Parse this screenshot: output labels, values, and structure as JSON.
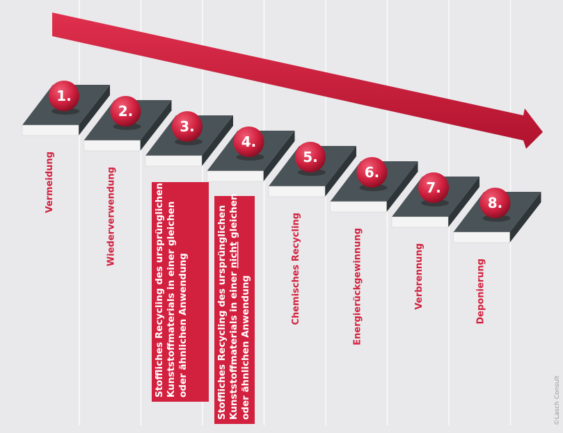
{
  "steps": [
    {
      "number": "1.",
      "label": "Vermeidung"
    },
    {
      "number": "2.",
      "label": "Wiederverwendung"
    },
    {
      "number": "3.",
      "lines": [
        [
          {
            "text": "Stoffliches Recycling des ursprünglichen"
          }
        ],
        [
          {
            "text": "Kunststoffmaterials in einer gleichen"
          }
        ],
        [
          {
            "text": "oder ähnlichen Anwendung"
          }
        ]
      ]
    },
    {
      "number": "4.",
      "lines": [
        [
          {
            "text": "Stoffliches Recycling des ursprünglichen"
          }
        ],
        [
          {
            "text": "Kunststoffmaterials in einer "
          },
          {
            "text": "nicht",
            "underline": true
          },
          {
            "text": " gleichen"
          }
        ],
        [
          {
            "text": "oder ähnlichen Anwendung"
          }
        ]
      ]
    },
    {
      "number": "5.",
      "label": "Chemisches Recycling"
    },
    {
      "number": "6.",
      "label": "Energierückgewinnung"
    },
    {
      "number": "7.",
      "label": "Verbrennung"
    },
    {
      "number": "8.",
      "label": "Deponierung"
    }
  ],
  "copyright": "©Lasch Consult"
}
